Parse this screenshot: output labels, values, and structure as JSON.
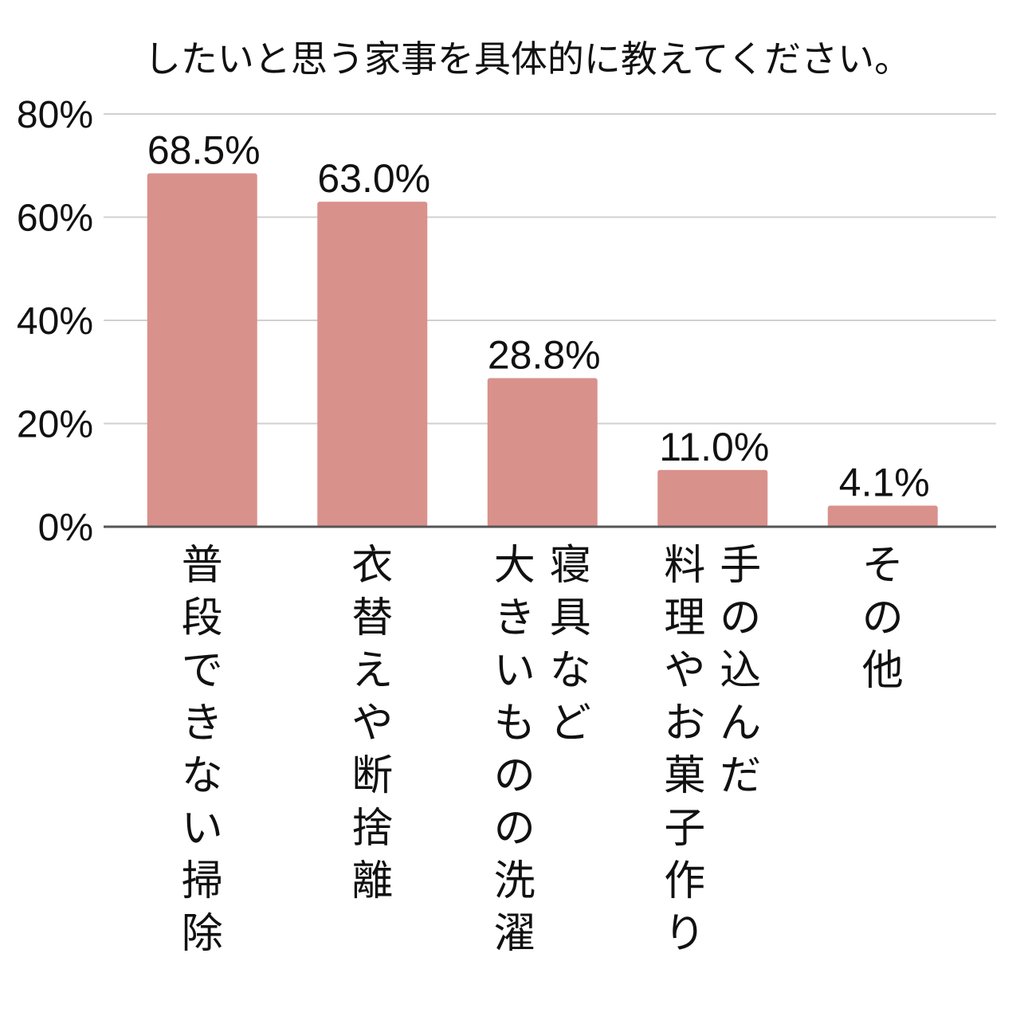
{
  "chart_data": {
    "type": "bar",
    "title": "したいと思う家事を具体的に教えてください。",
    "xlabel": "",
    "ylabel": "",
    "ylim": [
      0,
      80
    ],
    "yticks": [
      0,
      20,
      40,
      60,
      80
    ],
    "ytick_labels": [
      "0%",
      "20%",
      "40%",
      "60%",
      "80%"
    ],
    "grid": true,
    "legend": "none",
    "categories": [
      [
        "普段できない掃除"
      ],
      [
        "衣替えや断捨離"
      ],
      [
        "寝具など",
        "大きいものの洗濯"
      ],
      [
        "手の込んだ",
        "料理やお菓子作り"
      ],
      [
        "その他"
      ]
    ],
    "values": [
      68.5,
      63.0,
      28.8,
      11.0,
      4.1
    ],
    "value_labels": [
      "68.5%",
      "63.0%",
      "28.8%",
      "11.0%",
      "4.1%"
    ],
    "colors": {
      "bar": "#d9918c",
      "grid": "#d0d0d0",
      "axis": "#555555",
      "text": "#111111"
    }
  }
}
